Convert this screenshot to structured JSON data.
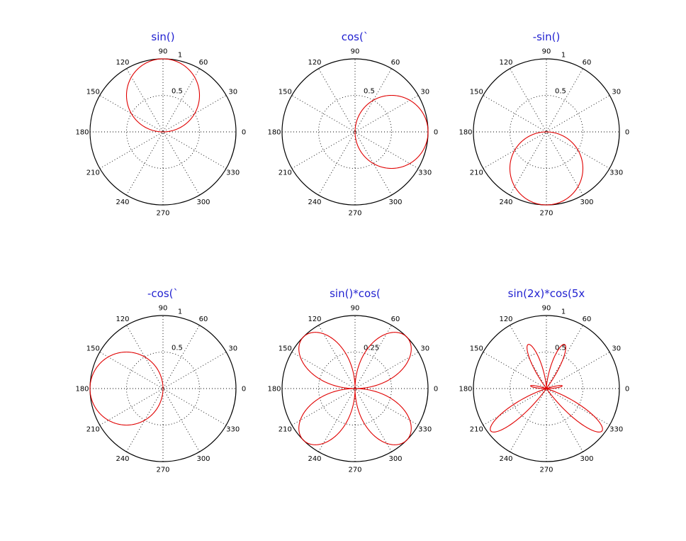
{
  "figure": {
    "curve_color": "#e00000",
    "title_color": "#1f1fd0",
    "grid": true
  },
  "chart_data": [
    {
      "type": "line",
      "polar": true,
      "title": "sin()",
      "expression": "sin(t)",
      "rmax": 1,
      "r_ticks": [
        "0.5",
        "1"
      ],
      "angle_ticks": [
        "0",
        "30",
        "60",
        "90",
        "120",
        "150",
        "180",
        "210",
        "240",
        "270",
        "300",
        "330"
      ]
    },
    {
      "type": "line",
      "polar": true,
      "title": "cos(`",
      "expression": "cos(t)",
      "rmax": 1,
      "r_ticks": [
        "0.5",
        ""
      ],
      "angle_ticks": [
        "0",
        "30",
        "60",
        "90",
        "120",
        "150",
        "180",
        "210",
        "240",
        "270",
        "300",
        "330"
      ]
    },
    {
      "type": "line",
      "polar": true,
      "title": "-sin()",
      "expression": "-sin(t)",
      "rmax": 1,
      "r_ticks": [
        "0.5",
        "1"
      ],
      "angle_ticks": [
        "0",
        "30",
        "60",
        "90",
        "120",
        "150",
        "180",
        "210",
        "240",
        "270",
        "300",
        "330"
      ]
    },
    {
      "type": "line",
      "polar": true,
      "title": "-cos(`",
      "expression": "-cos(t)",
      "rmax": 1,
      "r_ticks": [
        "0.5",
        "1"
      ],
      "angle_ticks": [
        "0",
        "30",
        "60",
        "90",
        "120",
        "150",
        "180",
        "210",
        "240",
        "270",
        "300",
        "330"
      ]
    },
    {
      "type": "line",
      "polar": true,
      "title": "sin()*cos(",
      "expression": "sin(t)*cos(t)",
      "rmax": 0.5,
      "r_ticks": [
        "0.25",
        ""
      ],
      "angle_ticks": [
        "0",
        "30",
        "60",
        "90",
        "120",
        "150",
        "180",
        "210",
        "240",
        "270",
        "300",
        "330"
      ]
    },
    {
      "type": "line",
      "polar": true,
      "title": "sin(2x)*cos(5x",
      "expression": "sin(2t)*cos(5t)",
      "rmax": 1,
      "r_ticks": [
        "0.5",
        "1"
      ],
      "angle_ticks": [
        "0",
        "30",
        "60",
        "90",
        "120",
        "150",
        "180",
        "210",
        "240",
        "270",
        "300",
        "330"
      ]
    }
  ]
}
